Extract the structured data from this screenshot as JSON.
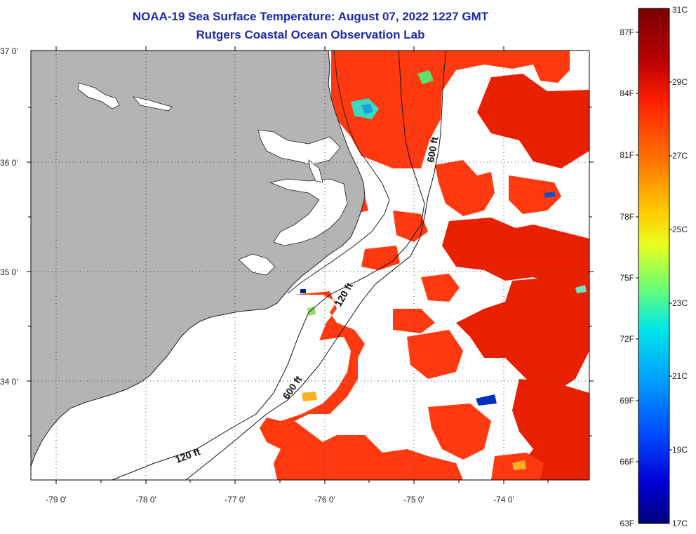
{
  "title": {
    "line1": "NOAA-19 Sea Surface Temperature:  August 07, 2022 1227 GMT",
    "line2": "Rutgers Coastal Ocean Observation Lab"
  },
  "axes": {
    "lon_labels": [
      "-79 0'",
      "-78 0'",
      "-77 0'",
      "-76 0'",
      "-75 0'",
      "-74 0'"
    ],
    "lat_labels": [
      "37 0'",
      "36 0'",
      "35 0'",
      "34 0'"
    ]
  },
  "contours": {
    "isobath_120": "120 ft",
    "isobath_600": "600 ft"
  },
  "colorbar": {
    "fahrenheit_labels": [
      "87F",
      "84F",
      "81F",
      "78F",
      "75F",
      "72F",
      "69F",
      "66F",
      "63F"
    ],
    "celsius_labels": [
      "31C",
      "29C",
      "27C",
      "25C",
      "23C",
      "21C",
      "19C",
      "17C"
    ],
    "scale_colors": [
      "#7a0000",
      "#c80000",
      "#ff2a00",
      "#ff7a00",
      "#ffd000",
      "#e8ff20",
      "#70ff70",
      "#00e0e0",
      "#00a0ff",
      "#0050ff",
      "#0000d0",
      "#00007a"
    ]
  },
  "colors": {
    "land": "#b4b4b4",
    "ocean_warm": "#ff3a10",
    "ocean_hot": "#e82000",
    "ocean_cool": "#ff7a10",
    "cloud": "#ffffff"
  }
}
